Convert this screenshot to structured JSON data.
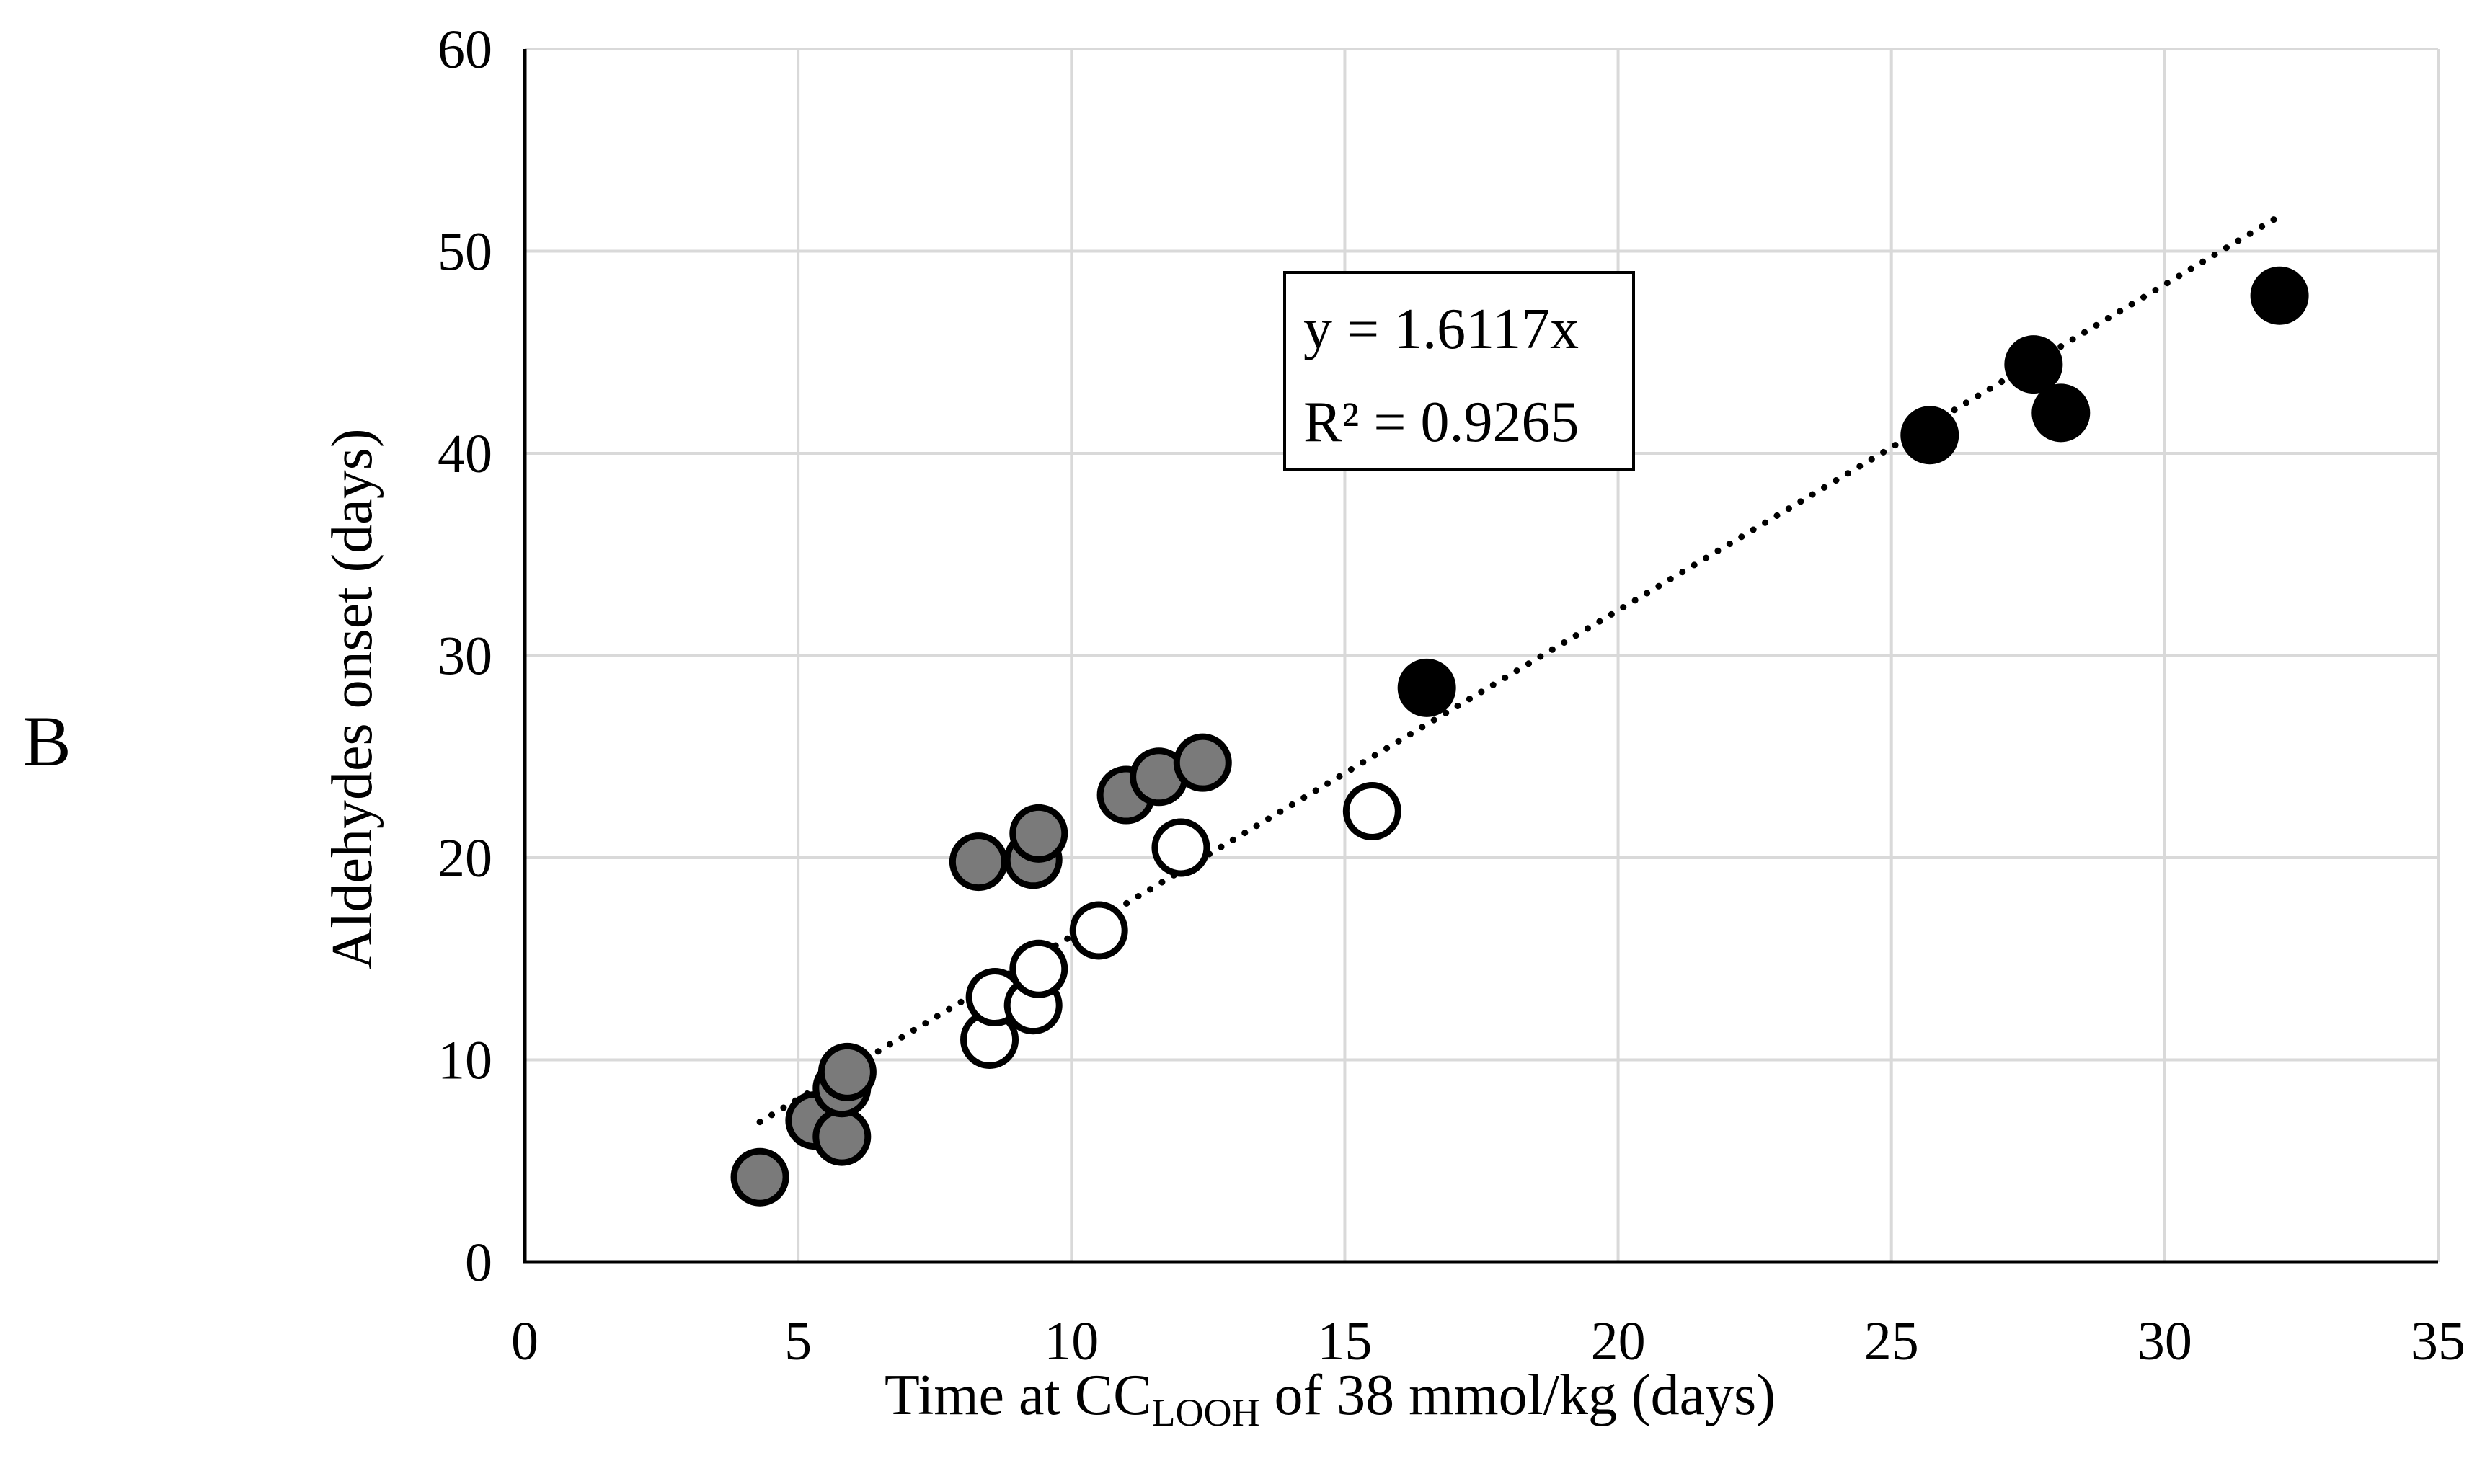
{
  "panel_label": "B",
  "chart_data": {
    "type": "scatter",
    "title": "",
    "xlabel_main": "Time at CC",
    "xlabel_sub": "LOOH",
    "xlabel_tail": " of 38 mmol/kg (days)",
    "ylabel": "Aldehydes onset (days)",
    "xlim": [
      0,
      35
    ],
    "ylim": [
      0,
      60
    ],
    "xticks": [
      0,
      5,
      10,
      15,
      20,
      25,
      30,
      35
    ],
    "yticks": [
      0,
      10,
      20,
      30,
      40,
      50,
      60
    ],
    "grid": true,
    "series": [
      {
        "name": "gray",
        "color": "#7a7a7a",
        "points": [
          [
            4.3,
            4.2
          ],
          [
            5.3,
            7.0
          ],
          [
            5.8,
            6.2
          ],
          [
            5.8,
            8.6
          ],
          [
            5.9,
            9.4
          ],
          [
            8.3,
            19.8
          ],
          [
            9.3,
            19.9
          ],
          [
            9.4,
            21.2
          ],
          [
            11.0,
            23.1
          ],
          [
            11.6,
            24.0
          ],
          [
            12.4,
            24.7
          ]
        ]
      },
      {
        "name": "white",
        "color": "#ffffff",
        "points": [
          [
            8.5,
            11.0
          ],
          [
            8.6,
            13.1
          ],
          [
            9.3,
            12.7
          ],
          [
            9.4,
            14.5
          ],
          [
            10.5,
            16.4
          ],
          [
            12.0,
            20.5
          ],
          [
            15.5,
            22.3
          ]
        ]
      },
      {
        "name": "black",
        "color": "#000000",
        "points": [
          [
            16.5,
            28.4
          ],
          [
            25.7,
            40.9
          ],
          [
            27.6,
            44.4
          ],
          [
            28.1,
            42.0
          ],
          [
            32.1,
            47.8
          ]
        ]
      }
    ],
    "trendline": {
      "type": "linear-through-origin",
      "slope": 1.6117,
      "x_range": [
        4.3,
        32.0
      ],
      "style": "dotted",
      "equation": "y = 1.6117x",
      "r_squared": "R² = 0.9265"
    }
  }
}
